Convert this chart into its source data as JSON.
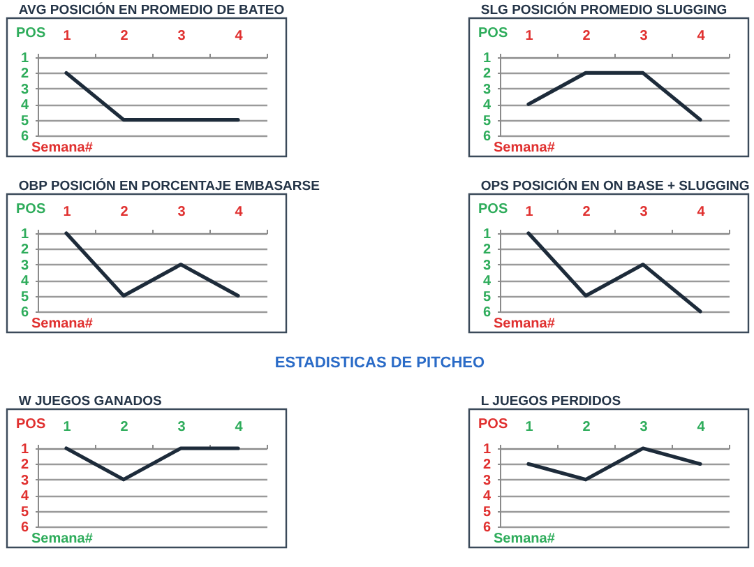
{
  "chart_data": [
    {
      "type": "line",
      "title": "AVG POSICIÓN EN PROMEDIO DE BATEO",
      "xlabel": "Semana#",
      "ylabel": "POS",
      "categories": [
        "1",
        "2",
        "3",
        "4"
      ],
      "series": [
        {
          "color": "#1d2b3a",
          "values": [
            2,
            5,
            5,
            5
          ]
        }
      ],
      "ylim": [
        6,
        1
      ],
      "yticks": [
        1,
        2,
        3,
        4,
        5,
        6
      ],
      "grid": "y"
    },
    {
      "type": "line",
      "title": "SLG POSICIÓN PROMEDIO SLUGGING",
      "xlabel": "Semana#",
      "ylabel": "POS",
      "categories": [
        "1",
        "2",
        "3",
        "4"
      ],
      "series": [
        {
          "color": "#1d2b3a",
          "values": [
            4,
            2,
            2,
            5
          ]
        }
      ],
      "ylim": [
        6,
        1
      ],
      "yticks": [
        1,
        2,
        3,
        4,
        5,
        6
      ],
      "grid": "y"
    },
    {
      "type": "line",
      "title": "OBP POSICIÓN EN PORCENTAJE EMBASARSE",
      "xlabel": "Semana#",
      "ylabel": "POS",
      "categories": [
        "1",
        "2",
        "3",
        "4"
      ],
      "series": [
        {
          "color": "#1d2b3a",
          "values": [
            1,
            5,
            3,
            5
          ]
        }
      ],
      "ylim": [
        6,
        1
      ],
      "yticks": [
        1,
        2,
        3,
        4,
        5,
        6
      ],
      "grid": "y"
    },
    {
      "type": "line",
      "title": "OPS POSICIÓN EN ON BASE + SLUGGING",
      "xlabel": "Semana#",
      "ylabel": "POS",
      "categories": [
        "1",
        "2",
        "3",
        "4"
      ],
      "series": [
        {
          "color": "#1d2b3a",
          "values": [
            1,
            5,
            3,
            6
          ]
        }
      ],
      "ylim": [
        6,
        1
      ],
      "yticks": [
        1,
        2,
        3,
        4,
        5,
        6
      ],
      "grid": "y"
    },
    {
      "type": "other",
      "title": "ESTADISTICAS DE PITCHEO"
    },
    {
      "type": "line",
      "title": "W JUEGOS GANADOS",
      "xlabel": "Semana#",
      "ylabel": "POS",
      "categories": [
        "1",
        "2",
        "3",
        "4"
      ],
      "series": [
        {
          "color": "#1d2b3a",
          "values": [
            1,
            3,
            1,
            1
          ]
        }
      ],
      "ylim": [
        6,
        1
      ],
      "yticks": [
        1,
        2,
        3,
        4,
        5,
        6
      ],
      "grid": "y"
    },
    {
      "type": "line",
      "title": "L JUEGOS PERDIDOS",
      "xlabel": "Semana#",
      "ylabel": "POS",
      "categories": [
        "1",
        "2",
        "3",
        "4"
      ],
      "series": [
        {
          "color": "#1d2b3a",
          "values": [
            2,
            3,
            1,
            2
          ]
        }
      ],
      "ylim": [
        6,
        1
      ],
      "yticks": [
        1,
        2,
        3,
        4,
        5,
        6
      ],
      "grid": "y"
    }
  ]
}
